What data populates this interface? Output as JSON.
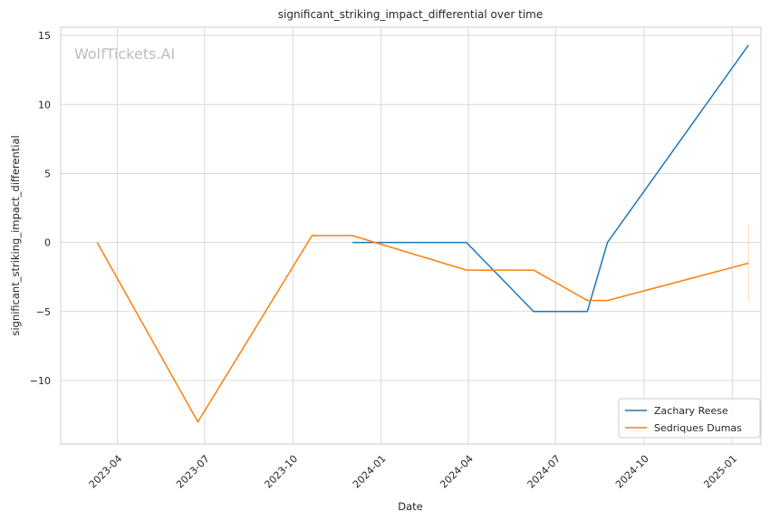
{
  "chart_data": {
    "type": "line",
    "title": "significant_striking_impact_differential over time",
    "xlabel": "Date",
    "ylabel": "significant_striking_impact_differential",
    "watermark": "WolfTickets.AI",
    "x_axis": {
      "type": "date",
      "range": [
        "2023-02-01",
        "2025-01-31"
      ]
    },
    "ylim": [
      -14.6,
      15.6
    ],
    "x_ticks": [
      {
        "date": "2023-04-01",
        "label": "2023-04"
      },
      {
        "date": "2023-07-01",
        "label": "2023-07"
      },
      {
        "date": "2023-10-01",
        "label": "2023-10"
      },
      {
        "date": "2024-01-01",
        "label": "2024-01"
      },
      {
        "date": "2024-04-01",
        "label": "2024-04"
      },
      {
        "date": "2024-07-01",
        "label": "2024-07"
      },
      {
        "date": "2024-10-01",
        "label": "2024-10"
      },
      {
        "date": "2025-01-01",
        "label": "2025-01"
      }
    ],
    "y_ticks": [
      {
        "value": 15,
        "label": "15"
      },
      {
        "value": 10,
        "label": "10"
      },
      {
        "value": 5,
        "label": "5"
      },
      {
        "value": 0,
        "label": "0"
      },
      {
        "value": -5,
        "label": "−5"
      },
      {
        "value": -10,
        "label": "−10"
      }
    ],
    "grid": true,
    "legend_position": "bottom-right",
    "series": [
      {
        "name": "Zachary Reese",
        "color": "#1f77b4",
        "points": [
          {
            "date": "2023-12-02",
            "y": 0
          },
          {
            "date": "2024-03-30",
            "y": 0
          },
          {
            "date": "2024-06-08",
            "y": -5
          },
          {
            "date": "2024-08-03",
            "y": -5
          },
          {
            "date": "2024-08-24",
            "y": 0
          },
          {
            "date": "2025-01-18",
            "y": 14.3
          }
        ]
      },
      {
        "name": "Sedriques Dumas",
        "color": "#ff7f0e",
        "points": [
          {
            "date": "2023-03-11",
            "y": 0
          },
          {
            "date": "2023-06-24",
            "y": -13
          },
          {
            "date": "2023-10-21",
            "y": 0.5
          },
          {
            "date": "2023-12-02",
            "y": 0.5
          },
          {
            "date": "2024-03-30",
            "y": -2
          },
          {
            "date": "2024-06-08",
            "y": -2
          },
          {
            "date": "2024-08-03",
            "y": -4.2
          },
          {
            "date": "2024-08-24",
            "y": -4.2
          },
          {
            "date": "2025-01-18",
            "y": -1.5
          }
        ]
      }
    ],
    "error_band": {
      "series": "Sedriques Dumas",
      "date": "2025-01-18",
      "low": -4.3,
      "high": 1.3,
      "color": "#ff7f0e"
    }
  }
}
